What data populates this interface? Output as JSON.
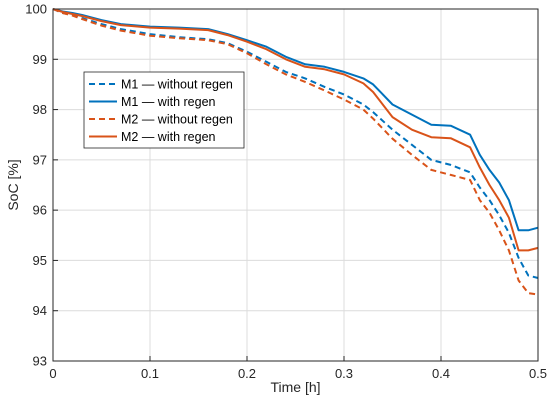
{
  "chart_data": {
    "type": "line",
    "title": "",
    "xlabel": "Time [h]",
    "ylabel": "SoC [%]",
    "xlim": [
      0,
      0.5
    ],
    "ylim": [
      93,
      100
    ],
    "xticks": [
      0,
      0.1,
      0.2,
      0.3,
      0.4,
      0.5
    ],
    "yticks": [
      93,
      94,
      95,
      96,
      97,
      98,
      99,
      100
    ],
    "xtick_labels": [
      "0",
      "0.1",
      "0.2",
      "0.3",
      "0.4",
      "0.5"
    ],
    "ytick_labels": [
      "93",
      "94",
      "95",
      "96",
      "97",
      "98",
      "99",
      "100"
    ],
    "grid": true,
    "legend_position": "upper-left",
    "series": [
      {
        "name": "M1 — without regen",
        "color": "#0072BD",
        "dash": "dashed",
        "x": [
          0,
          0.01,
          0.02,
          0.03,
          0.05,
          0.07,
          0.1,
          0.13,
          0.16,
          0.18,
          0.2,
          0.22,
          0.24,
          0.26,
          0.28,
          0.3,
          0.32,
          0.33,
          0.35,
          0.37,
          0.39,
          0.41,
          0.43,
          0.44,
          0.45,
          0.46,
          0.47,
          0.48,
          0.49,
          0.5
        ],
        "y": [
          100,
          99.92,
          99.88,
          99.82,
          99.7,
          99.6,
          99.5,
          99.44,
          99.4,
          99.32,
          99.15,
          98.95,
          98.75,
          98.62,
          98.45,
          98.3,
          98.1,
          97.95,
          97.6,
          97.3,
          97.0,
          96.9,
          96.75,
          96.45,
          96.2,
          95.9,
          95.55,
          95.05,
          94.7,
          94.65
        ]
      },
      {
        "name": "M1 — with regen",
        "color": "#0072BD",
        "dash": "solid",
        "x": [
          0,
          0.01,
          0.02,
          0.03,
          0.05,
          0.07,
          0.1,
          0.13,
          0.16,
          0.18,
          0.2,
          0.22,
          0.24,
          0.26,
          0.28,
          0.3,
          0.32,
          0.33,
          0.35,
          0.37,
          0.39,
          0.41,
          0.43,
          0.44,
          0.45,
          0.46,
          0.47,
          0.48,
          0.49,
          0.5
        ],
        "y": [
          100,
          99.95,
          99.92,
          99.88,
          99.78,
          99.7,
          99.65,
          99.63,
          99.6,
          99.5,
          99.38,
          99.25,
          99.05,
          98.9,
          98.85,
          98.75,
          98.62,
          98.5,
          98.1,
          97.9,
          97.7,
          97.68,
          97.5,
          97.1,
          96.8,
          96.55,
          96.2,
          95.6,
          95.6,
          95.65
        ]
      },
      {
        "name": "M2 — without regen",
        "color": "#D95319",
        "dash": "dashed",
        "x": [
          0,
          0.01,
          0.02,
          0.03,
          0.05,
          0.07,
          0.1,
          0.13,
          0.16,
          0.18,
          0.2,
          0.22,
          0.24,
          0.26,
          0.28,
          0.3,
          0.32,
          0.33,
          0.35,
          0.37,
          0.39,
          0.41,
          0.43,
          0.44,
          0.45,
          0.46,
          0.47,
          0.48,
          0.49,
          0.5
        ],
        "y": [
          100,
          99.92,
          99.87,
          99.8,
          99.67,
          99.57,
          99.47,
          99.42,
          99.38,
          99.3,
          99.12,
          98.9,
          98.7,
          98.55,
          98.38,
          98.2,
          98.0,
          97.82,
          97.42,
          97.1,
          96.8,
          96.7,
          96.6,
          96.2,
          95.95,
          95.6,
          95.2,
          94.6,
          94.35,
          94.32
        ]
      },
      {
        "name": "M2 — with regen",
        "color": "#D95319",
        "dash": "solid",
        "x": [
          0,
          0.01,
          0.02,
          0.03,
          0.05,
          0.07,
          0.1,
          0.13,
          0.16,
          0.18,
          0.2,
          0.22,
          0.24,
          0.26,
          0.28,
          0.3,
          0.32,
          0.33,
          0.35,
          0.37,
          0.39,
          0.41,
          0.43,
          0.44,
          0.45,
          0.46,
          0.47,
          0.48,
          0.49,
          0.5
        ],
        "y": [
          100,
          99.94,
          99.9,
          99.86,
          99.76,
          99.68,
          99.63,
          99.61,
          99.58,
          99.48,
          99.35,
          99.2,
          99.0,
          98.85,
          98.8,
          98.7,
          98.52,
          98.35,
          97.85,
          97.6,
          97.45,
          97.43,
          97.25,
          96.85,
          96.5,
          96.2,
          95.85,
          95.2,
          95.2,
          95.25
        ]
      }
    ]
  }
}
